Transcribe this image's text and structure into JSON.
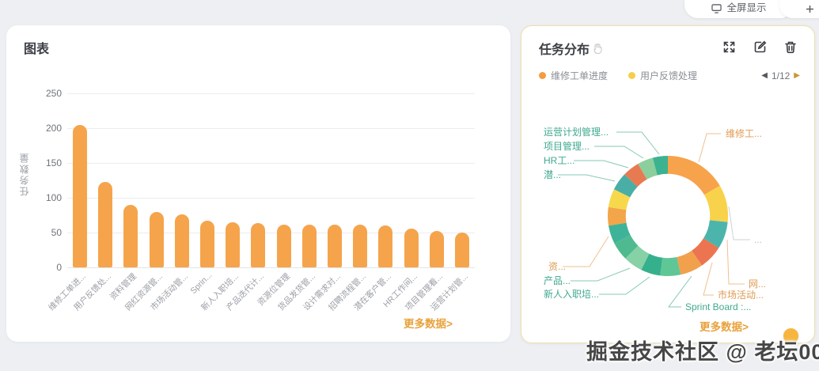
{
  "topbar": {
    "fullscreen_label": "全屏显示",
    "add_label": "新增"
  },
  "watermark": "掘金技术社区 @ 老坛001",
  "left_panel": {
    "title": "图表",
    "more_link": "更多数据>"
  },
  "right_panel": {
    "title": "任务分布",
    "legend": [
      {
        "label": "维修工单进度",
        "color": "#F59B41"
      },
      {
        "label": "用户反馈处理",
        "color": "#F6CE4B"
      }
    ],
    "pagination": {
      "prev": "◀",
      "label": "1/12",
      "next": "▶"
    },
    "more_link": "更多数据>"
  },
  "chart_data": [
    {
      "type": "bar",
      "title": "图表",
      "categories": [
        "维修工单进...",
        "用户反馈处...",
        "资料管理",
        "网红资源管...",
        "市场活动管...",
        "Sprin...",
        "新人入职培...",
        "产品迭代计...",
        "资源位管理",
        "货品发货管...",
        "设计需求对...",
        "招聘流程管...",
        "潜在客户管...",
        "HR工作间...",
        "项目管理看...",
        "运营计划管..."
      ],
      "values": [
        205,
        123,
        90,
        80,
        76,
        67,
        65,
        64,
        61,
        61,
        61,
        61,
        60,
        56,
        52,
        50
      ],
      "xlabel": "",
      "ylabel": "任务数量",
      "ylim": [
        0,
        250
      ],
      "yticks": [
        0,
        50,
        100,
        150,
        200,
        250
      ],
      "bar_color": "#F5A44C",
      "grid": true,
      "legend_position": "none"
    },
    {
      "type": "pie",
      "title": "任务分布",
      "inner_radius_ratio": 0.7,
      "legend_position": "top",
      "segments": [
        {
          "label": "维修工...",
          "value": 205,
          "color": "#F6A34C"
        },
        {
          "label": "...",
          "value": 123,
          "color": "#F8D24A"
        },
        {
          "label": "网...",
          "value": 90,
          "color": "#4BB5AC"
        },
        {
          "label": "市场活动...",
          "value": 80,
          "color": "#EC7450"
        },
        {
          "label": "Sprint Board :...",
          "value": 76,
          "color": "#F1A04C"
        },
        {
          "label": "",
          "value": 67,
          "color": "#5FC695"
        },
        {
          "label": "新人入职培...",
          "value": 65,
          "color": "#35B08D"
        },
        {
          "label": "产品...",
          "value": 64,
          "color": "#86D1A6"
        },
        {
          "label": "资...",
          "value": 61,
          "color": "#4FBA8F"
        },
        {
          "label": "",
          "value": 61,
          "color": "#3FB39A"
        },
        {
          "label": "",
          "value": 61,
          "color": "#F3A54A"
        },
        {
          "label": "",
          "value": 61,
          "color": "#F7D84D"
        },
        {
          "label": "潜...",
          "value": 60,
          "color": "#49AEA6"
        },
        {
          "label": "HR工...",
          "value": 56,
          "color": "#E87A52"
        },
        {
          "label": "项目管理...",
          "value": 52,
          "color": "#8CCF9C"
        },
        {
          "label": "运营计划管理...",
          "value": 50,
          "color": "#3CB390"
        }
      ]
    }
  ]
}
